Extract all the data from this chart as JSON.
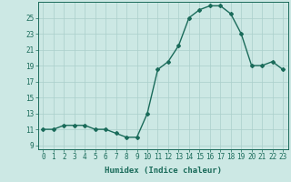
{
  "x": [
    0,
    1,
    2,
    3,
    4,
    5,
    6,
    7,
    8,
    9,
    10,
    11,
    12,
    13,
    14,
    15,
    16,
    17,
    18,
    19,
    20,
    21,
    22,
    23
  ],
  "y": [
    11,
    11,
    11.5,
    11.5,
    11.5,
    11,
    11,
    10.5,
    10,
    10,
    13,
    18.5,
    19.5,
    21.5,
    25,
    26,
    26.5,
    26.5,
    25.5,
    23,
    19,
    19,
    19.5,
    18.5
  ],
  "line_color": "#1a6b5a",
  "bg_color": "#cce8e4",
  "grid_color": "#aacfcb",
  "xlabel": "Humidex (Indice chaleur)",
  "xlim": [
    -0.5,
    23.5
  ],
  "ylim": [
    8.5,
    27
  ],
  "yticks": [
    9,
    11,
    13,
    15,
    17,
    19,
    21,
    23,
    25
  ],
  "xticks": [
    0,
    1,
    2,
    3,
    4,
    5,
    6,
    7,
    8,
    9,
    10,
    11,
    12,
    13,
    14,
    15,
    16,
    17,
    18,
    19,
    20,
    21,
    22,
    23
  ],
  "xtick_labels": [
    "0",
    "1",
    "2",
    "3",
    "4",
    "5",
    "6",
    "7",
    "8",
    "9",
    "10",
    "11",
    "12",
    "13",
    "14",
    "15",
    "16",
    "17",
    "18",
    "19",
    "20",
    "21",
    "22",
    "23"
  ],
  "marker": "D",
  "marker_size": 2.0,
  "line_width": 1.0,
  "tick_fontsize": 5.5,
  "xlabel_fontsize": 6.5
}
